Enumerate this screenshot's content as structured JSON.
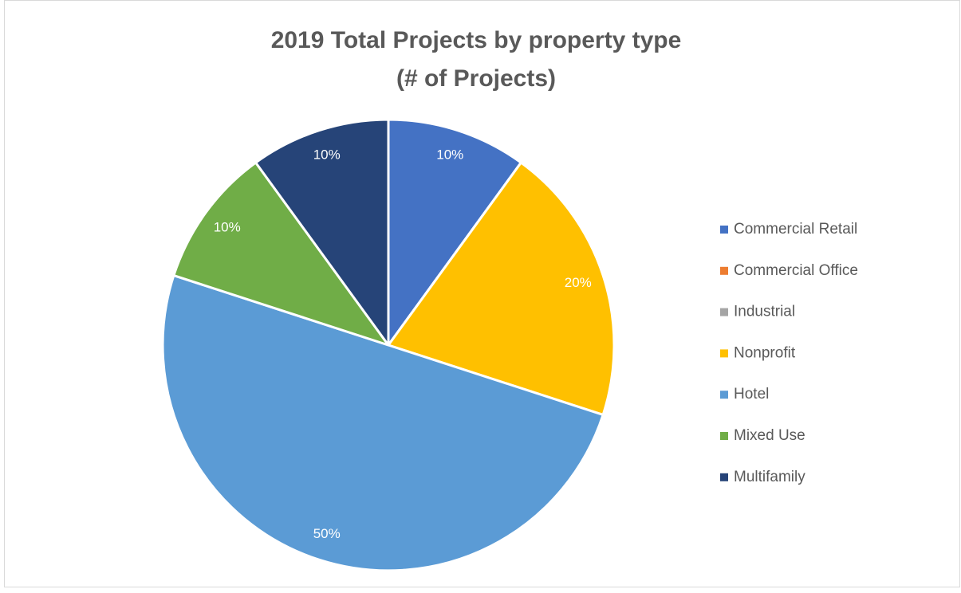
{
  "chart_data": {
    "type": "pie",
    "title": [
      "2019 Total Projects by property type",
      "(# of Projects)"
    ],
    "categories": [
      "Commercial Retail",
      "Commercial Office",
      "Industrial",
      "Nonprofit",
      "Hotel",
      "Mixed Use",
      "Multifamily"
    ],
    "values": [
      10,
      0,
      0,
      20,
      50,
      10,
      10
    ],
    "value_labels": [
      "10%",
      null,
      null,
      "20%",
      "50%",
      "10%",
      "10%"
    ],
    "colors": [
      "#4472c4",
      "#ed7d31",
      "#a5a5a5",
      "#ffc000",
      "#5b9bd5",
      "#70ad47",
      "#264478"
    ],
    "legend": "right"
  }
}
